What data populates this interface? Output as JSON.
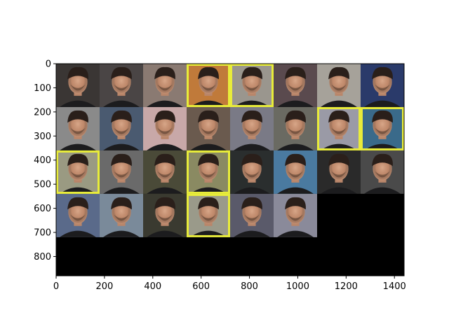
{
  "chart_data": {
    "type": "heatmap",
    "title": "",
    "xlabel": "",
    "ylabel": "",
    "xlim": [
      0,
      1440
    ],
    "ylim": [
      880,
      0
    ],
    "x_ticks": [
      0,
      200,
      400,
      600,
      800,
      1000,
      1200,
      1400
    ],
    "y_ticks": [
      0,
      100,
      200,
      300,
      400,
      500,
      600,
      700,
      800
    ],
    "grid": false,
    "tile_size": 180,
    "columns": 8,
    "rows": 4,
    "filled_tiles": 30,
    "background": "#000000",
    "tiles": [
      [
        "#3a3634",
        "#4a4545",
        "#8a7a72",
        "#c07a3a",
        "#9a968e",
        "#5a4a4e",
        "#a6a29a",
        "#2a3a6a"
      ],
      [
        "#8a8a8a",
        "#4a5a70",
        "#c8a8a8",
        "#6a5a4e",
        "#7a7a86",
        "#6a6a62",
        "#9a9aa6",
        "#3a6a8a"
      ],
      [
        "#9a9a82",
        "#6a6a6a",
        "#4a4a38",
        "#8a8a62",
        "#2a2e2e",
        "#4a7aa0",
        "#2a2a2a",
        "#4a4a4a"
      ],
      [
        "#5a6a8a",
        "#7a8a9a",
        "#3a3a30",
        "#9a9a8a",
        "#5a5a6a",
        "#8a8a9a",
        "#000000",
        "#000000"
      ]
    ],
    "border_tiles": [
      {
        "row": 0,
        "col": 3,
        "color": "#e8ec3a"
      },
      {
        "row": 0,
        "col": 4,
        "color": "#e8ec3a"
      },
      {
        "row": 1,
        "col": 6,
        "color": "#e8ec3a"
      },
      {
        "row": 1,
        "col": 7,
        "color": "#e8ec3a"
      },
      {
        "row": 2,
        "col": 0,
        "color": "#e8ec3a"
      },
      {
        "row": 2,
        "col": 3,
        "color": "#e8ec3a"
      },
      {
        "row": 3,
        "col": 3,
        "color": "#e8ec3a"
      }
    ]
  }
}
